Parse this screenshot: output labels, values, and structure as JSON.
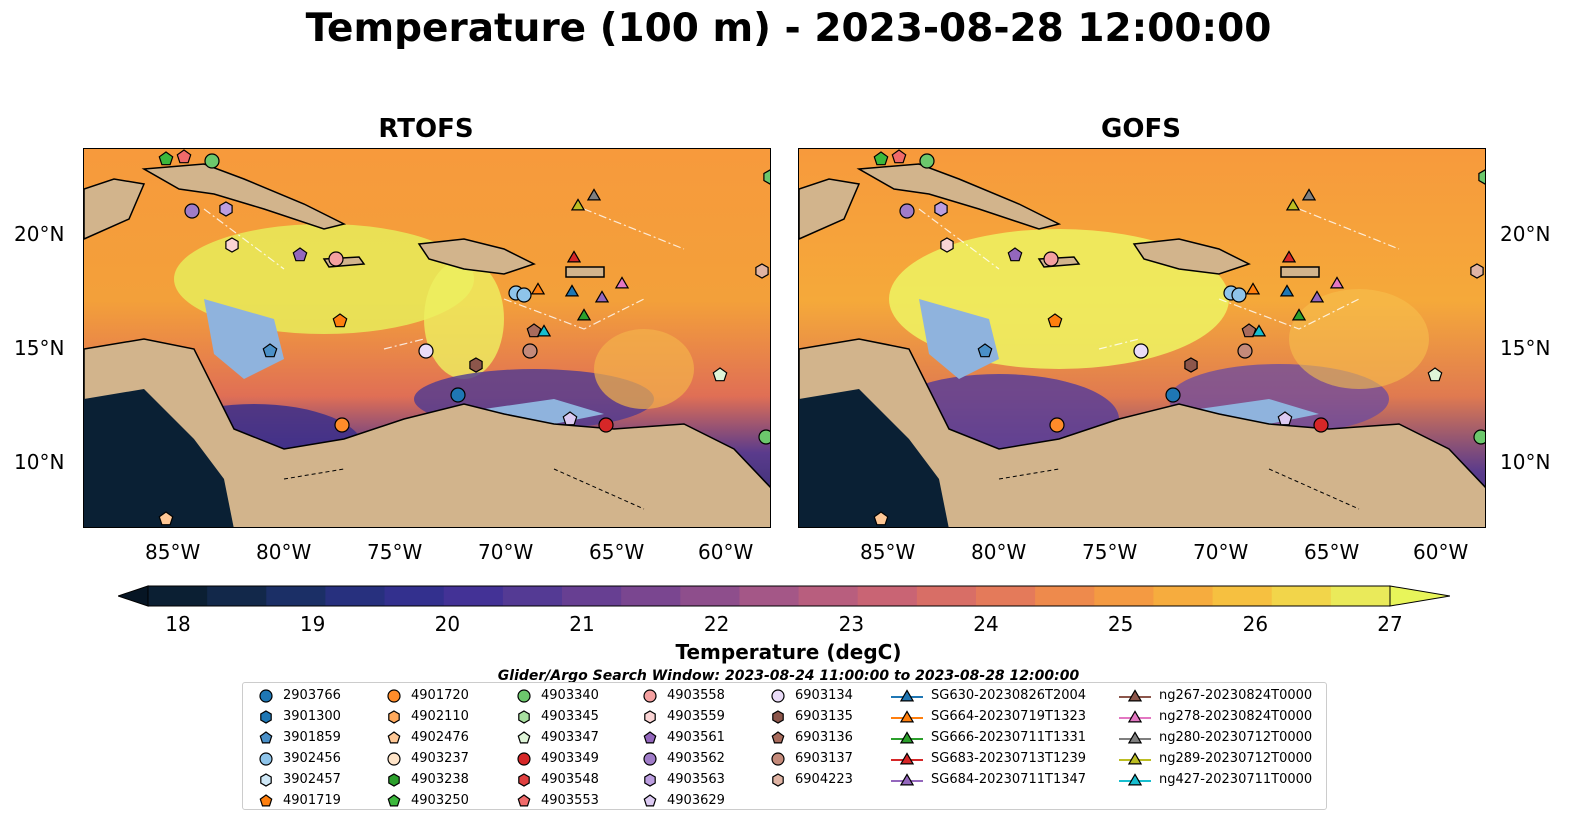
{
  "title": "Temperature (100 m) - 2023-08-28 12:00:00",
  "panels": [
    {
      "title": "RTOFS"
    },
    {
      "title": "GOFS"
    }
  ],
  "lon_ticks": [
    "85°W",
    "80°W",
    "75°W",
    "70°W",
    "65°W",
    "60°W"
  ],
  "lat_ticks": [
    "20°N",
    "15°N",
    "10°N"
  ],
  "colorbar": {
    "label": "Temperature (degC)",
    "ticks": [
      "18",
      "19",
      "20",
      "21",
      "22",
      "23",
      "24",
      "25",
      "26",
      "27"
    ],
    "range": [
      18,
      27
    ]
  },
  "search_window": "Glider/Argo Search Window: 2023-08-24 11:00:00 to 2023-08-28 12:00:00",
  "legend": {
    "columns": [
      [
        {
          "label": "2903766",
          "marker": "circle",
          "color": "#1f77b4"
        },
        {
          "label": "3901300",
          "marker": "hexagon",
          "color": "#1f77b4"
        },
        {
          "label": "3901859",
          "marker": "pentagon",
          "color": "#4a90c8"
        },
        {
          "label": "3902456",
          "marker": "circle",
          "color": "#8ec4ea"
        },
        {
          "label": "3902457",
          "marker": "hexagon",
          "color": "#cfe8f7"
        },
        {
          "label": "4901719",
          "marker": "pentagon",
          "color": "#ff7f0e"
        }
      ],
      [
        {
          "label": "4901720",
          "marker": "circle",
          "color": "#ff8c2a"
        },
        {
          "label": "4902110",
          "marker": "hexagon",
          "color": "#ffa95c"
        },
        {
          "label": "4902476",
          "marker": "pentagon",
          "color": "#ffc896"
        },
        {
          "label": "4903237",
          "marker": "circle",
          "color": "#ffe4c8"
        },
        {
          "label": "4903238",
          "marker": "hexagon",
          "color": "#2ca02c"
        },
        {
          "label": "4903250",
          "marker": "pentagon",
          "color": "#3cb83c"
        }
      ],
      [
        {
          "label": "4903340",
          "marker": "circle",
          "color": "#6cc86c"
        },
        {
          "label": "4903345",
          "marker": "hexagon",
          "color": "#a8e0a0"
        },
        {
          "label": "4903347",
          "marker": "pentagon",
          "color": "#dff5d8"
        },
        {
          "label": "4903349",
          "marker": "circle",
          "color": "#d62728"
        },
        {
          "label": "4903548",
          "marker": "hexagon",
          "color": "#e04040"
        },
        {
          "label": "4903553",
          "marker": "pentagon",
          "color": "#f06a6a"
        }
      ],
      [
        {
          "label": "4903558",
          "marker": "circle",
          "color": "#f4a0a0"
        },
        {
          "label": "4903559",
          "marker": "hexagon",
          "color": "#fad4d4"
        },
        {
          "label": "4903561",
          "marker": "pentagon",
          "color": "#9467bd"
        },
        {
          "label": "4903562",
          "marker": "circle",
          "color": "#a07cc8"
        },
        {
          "label": "4903563",
          "marker": "hexagon",
          "color": "#bc9ee0"
        },
        {
          "label": "4903629",
          "marker": "pentagon",
          "color": "#dccaf2"
        }
      ],
      [
        {
          "label": "6903134",
          "marker": "circle",
          "color": "#eadcf8"
        },
        {
          "label": "6903135",
          "marker": "hexagon",
          "color": "#8c564b"
        },
        {
          "label": "6903136",
          "marker": "pentagon",
          "color": "#a86b5c"
        },
        {
          "label": "6903137",
          "marker": "circle",
          "color": "#c48a7a"
        },
        {
          "label": "6904223",
          "marker": "hexagon",
          "color": "#e0b4a4"
        }
      ],
      [
        {
          "label": "SG630-20230826T2004",
          "marker": "triangle",
          "color": "#1f77b4"
        },
        {
          "label": "SG664-20230719T1323",
          "marker": "triangle",
          "color": "#ff7f0e"
        },
        {
          "label": "SG666-20230711T1331",
          "marker": "triangle",
          "color": "#2ca02c"
        },
        {
          "label": "SG683-20230713T1239",
          "marker": "triangle",
          "color": "#d62728"
        },
        {
          "label": "SG684-20230711T1347",
          "marker": "triangle",
          "color": "#9467bd"
        }
      ],
      [
        {
          "label": "ng267-20230824T0000",
          "marker": "triangle",
          "color": "#8c564b"
        },
        {
          "label": "ng278-20230824T0000",
          "marker": "triangle",
          "color": "#e377c2"
        },
        {
          "label": "ng280-20230712T0000",
          "marker": "triangle",
          "color": "#7f7f7f"
        },
        {
          "label": "ng289-20230712T0000",
          "marker": "triangle",
          "color": "#bcbd22"
        },
        {
          "label": "ng427-20230711T0000",
          "marker": "triangle",
          "color": "#17becf"
        }
      ]
    ]
  }
}
